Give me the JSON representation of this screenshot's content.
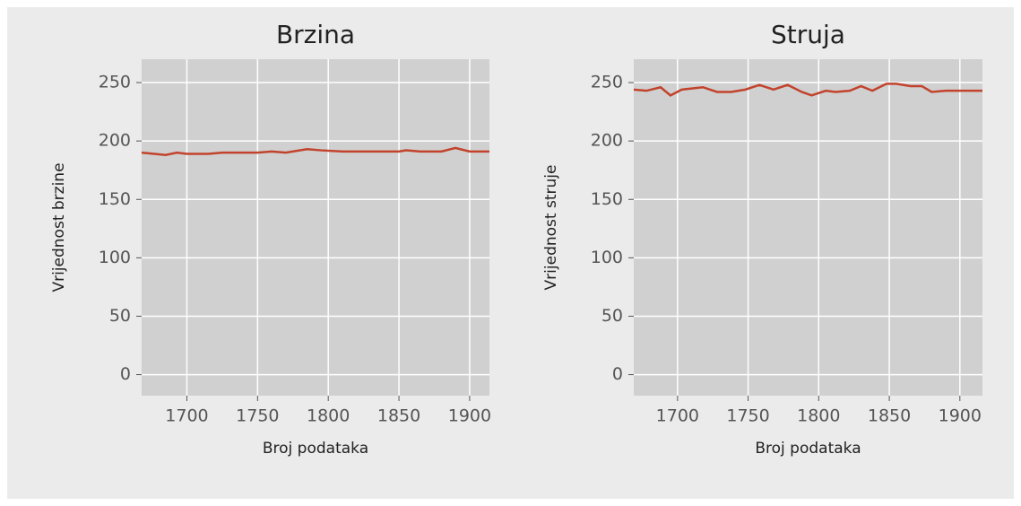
{
  "chart_data": [
    {
      "type": "line",
      "title": "Brzina",
      "xlabel": "Broj podataka",
      "ylabel": "Vrijednost brzine",
      "xlim": [
        1668,
        1914
      ],
      "xticks": [
        1700,
        1750,
        1800,
        1850,
        1900
      ],
      "ylim": [
        -18,
        270
      ],
      "yticks": [
        0,
        50,
        100,
        150,
        200,
        250
      ],
      "grid": true,
      "x": [
        1668,
        1685,
        1693,
        1700,
        1715,
        1725,
        1750,
        1760,
        1770,
        1785,
        1795,
        1810,
        1850,
        1855,
        1865,
        1880,
        1890,
        1900,
        1914
      ],
      "series": [
        {
          "name": null,
          "color": "#c2432c",
          "values": [
            190,
            188,
            190,
            189,
            189,
            190,
            190,
            191,
            190,
            193,
            192,
            191,
            191,
            192,
            191,
            191,
            194,
            191,
            191
          ]
        }
      ]
    },
    {
      "type": "line",
      "title": "Struja",
      "xlabel": "Broj podataka",
      "ylabel": "Vrijednost struje",
      "xlim": [
        1669,
        1916
      ],
      "xticks": [
        1700,
        1750,
        1800,
        1850,
        1900
      ],
      "ylim": [
        -18,
        270
      ],
      "yticks": [
        0,
        50,
        100,
        150,
        200,
        250
      ],
      "grid": true,
      "x": [
        1669,
        1678,
        1688,
        1695,
        1703,
        1718,
        1728,
        1738,
        1748,
        1758,
        1768,
        1778,
        1788,
        1795,
        1805,
        1812,
        1822,
        1830,
        1838,
        1848,
        1855,
        1865,
        1873,
        1880,
        1890,
        1916
      ],
      "series": [
        {
          "name": null,
          "color": "#c2432c",
          "values": [
            244,
            243,
            246,
            239,
            244,
            246,
            242,
            242,
            244,
            248,
            244,
            248,
            242,
            239,
            243,
            242,
            243,
            247,
            243,
            249,
            249,
            247,
            247,
            242,
            243,
            243
          ]
        }
      ]
    }
  ]
}
